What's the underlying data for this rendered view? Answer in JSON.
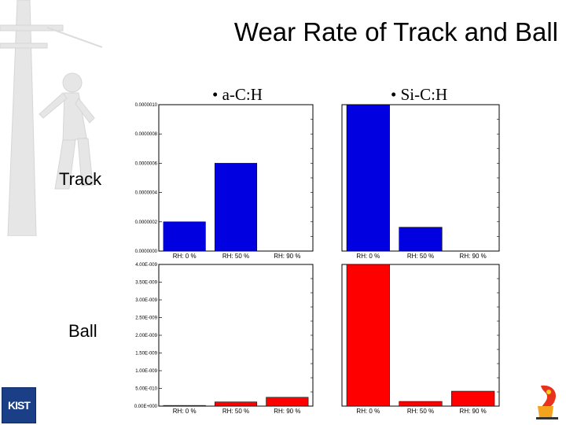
{
  "slide": {
    "title": "Wear Rate of Track and Ball",
    "columns": [
      "• a-C:H",
      "• Si-C:H"
    ],
    "rows": [
      "Track",
      "Ball"
    ],
    "logo_left": "KIST"
  },
  "colors": {
    "track": "#0000e0",
    "ball": "#ff0000"
  },
  "chart_data": [
    {
      "type": "bar",
      "name": "track-aCH",
      "categories": [
        "RH: 0 %",
        "RH: 50 %",
        "RH: 90 %"
      ],
      "values": [
        2e-07,
        6e-07,
        0
      ],
      "ylim": [
        0,
        1e-06
      ],
      "ytick_values": [
        0,
        2e-07,
        4e-07,
        6e-07,
        8e-07,
        1e-06
      ],
      "ytick_labels": [
        "0.0000000",
        "0.0000002",
        "0.0000004",
        "0.0000006",
        "0.0000008",
        "0.0000010"
      ],
      "color": "#0000e0"
    },
    {
      "type": "bar",
      "name": "track-SiCH",
      "categories": [
        "RH: 0 %",
        "RH: 50 %",
        "RH: 90 %"
      ],
      "values": [
        9.2e-06,
        1.5e-06,
        0
      ],
      "ylim": [
        0,
        9.2e-06
      ],
      "ytick_values": [],
      "ytick_labels": [],
      "color": "#0000e0"
    },
    {
      "type": "bar",
      "name": "ball-aCH",
      "categories": [
        "RH: 0 %",
        "RH: 50 %",
        "RH: 90 %"
      ],
      "values": [
        2e-11,
        1.2e-10,
        2.5e-10
      ],
      "ylim": [
        0,
        4e-09
      ],
      "ytick_values": [
        0,
        5e-10,
        1e-09,
        1.5e-09,
        2e-09,
        2.5e-09,
        3e-09,
        3.5e-09,
        4e-09
      ],
      "ytick_labels": [
        "0.00E+000",
        "5.00E-010",
        "1.00E-009",
        "1.50E-009",
        "2.00E-009",
        "2.50E-009",
        "3.00E-009",
        "3.50E-009",
        "4.00E-009"
      ],
      "color": "#ff0000"
    },
    {
      "type": "bar",
      "name": "ball-SiCH",
      "categories": [
        "RH: 0 %",
        "RH: 50 %",
        "RH: 90 %"
      ],
      "values": [
        1.8e-08,
        6e-10,
        1.9e-09
      ],
      "ylim": [
        0,
        1.8e-08
      ],
      "ytick_values": [],
      "ytick_labels": [],
      "color": "#ff0000"
    }
  ]
}
